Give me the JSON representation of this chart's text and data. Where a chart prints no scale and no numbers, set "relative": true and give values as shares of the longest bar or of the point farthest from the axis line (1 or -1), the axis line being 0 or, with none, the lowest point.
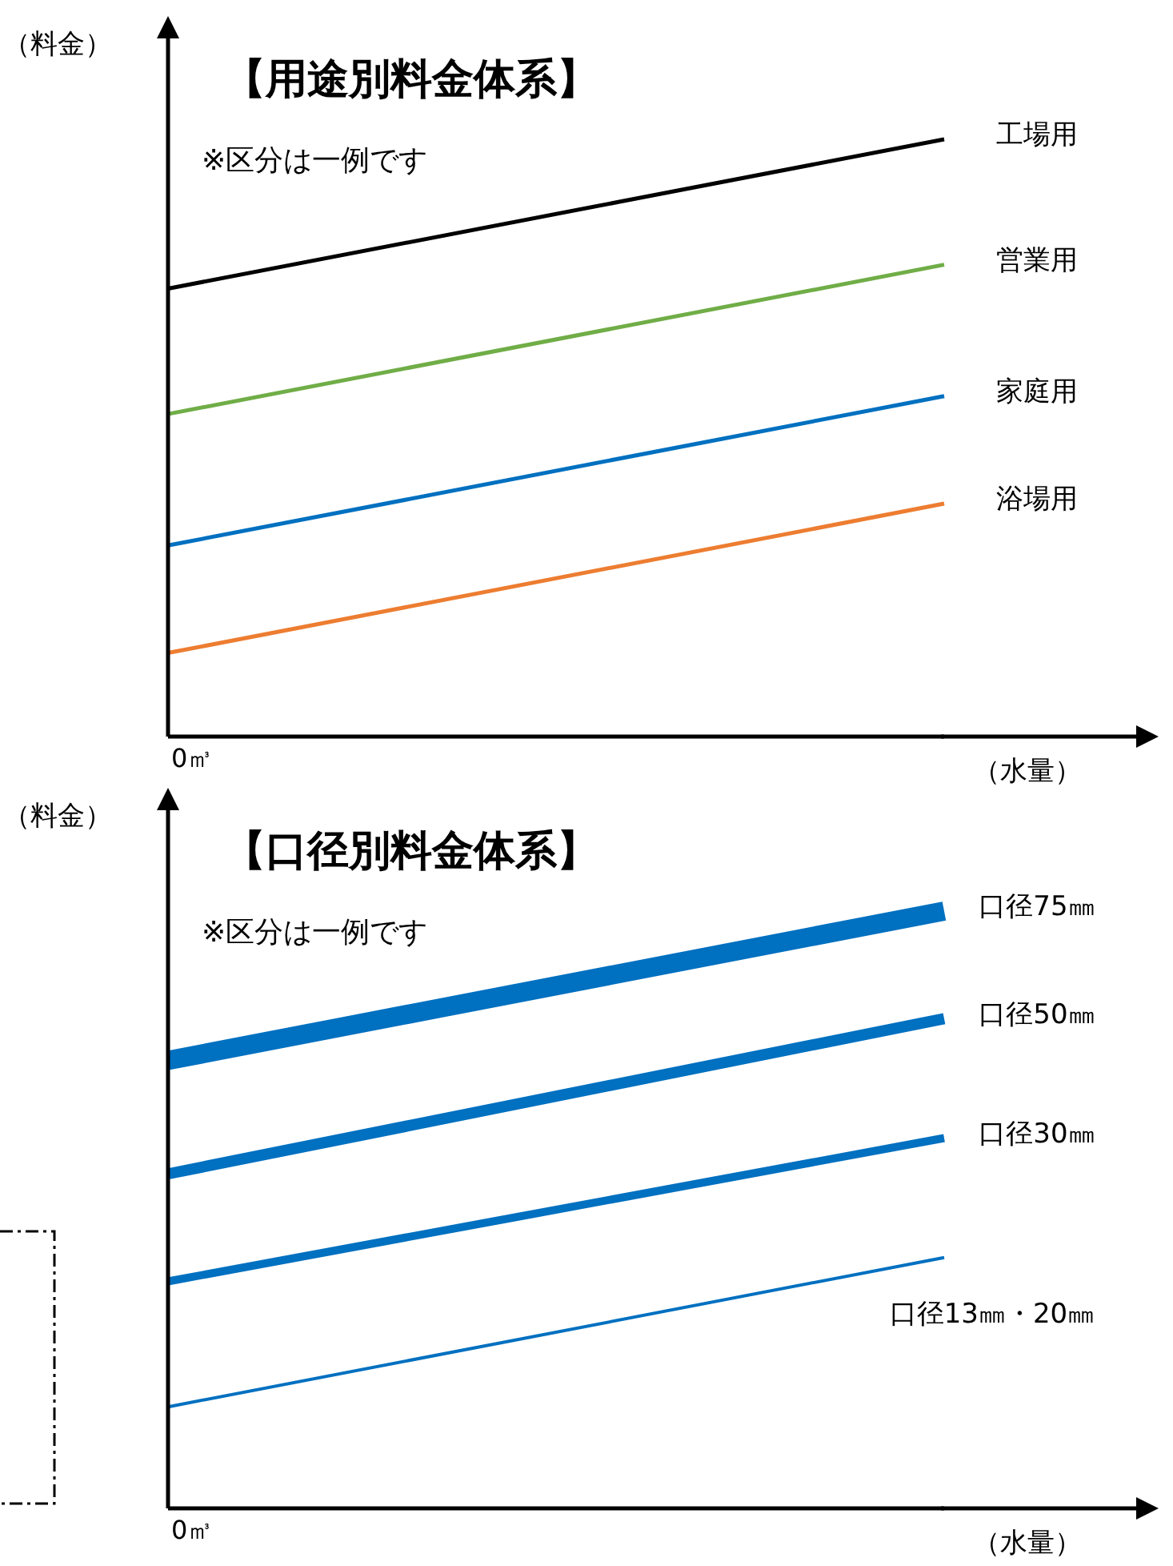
{
  "chart_data": [
    {
      "type": "line",
      "title": "【用途別料金体系】",
      "annotations": [
        "※区分は一例です",
        "0㎥"
      ],
      "ylabel": "（料金）",
      "xlabel": "（水量）",
      "relative": true,
      "categories": [
        null,
        null
      ],
      "legend": false,
      "grid": false,
      "marker": "none",
      "line_style": "solid",
      "series": [
        {
          "name": "工場用",
          "color": "#000000",
          "values": [
            0.75,
            1
          ]
        },
        {
          "name": "営業用",
          "color": "#70ad47",
          "values": [
            0.54,
            0.79
          ]
        },
        {
          "name": "家庭用",
          "color": "#0070c0",
          "values": [
            0.32,
            0.57
          ]
        },
        {
          "name": "浴場用",
          "color": "#ed7d31",
          "values": [
            0.14,
            0.39
          ]
        }
      ]
    },
    {
      "type": "line",
      "title": "【口径別料金体系】",
      "annotations": [
        "※区分は一例です",
        "0㎥"
      ],
      "ylabel": "（料金）",
      "xlabel": "（水量）",
      "relative": true,
      "categories": [
        null,
        null
      ],
      "legend": false,
      "grid": false,
      "marker": "none",
      "line_style": "solid",
      "series": [
        {
          "name": "口径75㎜",
          "color": "#0070c0",
          "values": [
            0.75,
            1
          ]
        },
        {
          "name": "口径50㎜",
          "color": "#0070c0",
          "values": [
            0.56,
            0.82
          ]
        },
        {
          "name": "口径30㎜",
          "color": "#0070c0",
          "values": [
            0.38,
            0.62
          ]
        },
        {
          "name": "口径13㎜・20㎜",
          "color": "#0070c0",
          "values": [
            0.17,
            0.42
          ]
        }
      ]
    }
  ]
}
